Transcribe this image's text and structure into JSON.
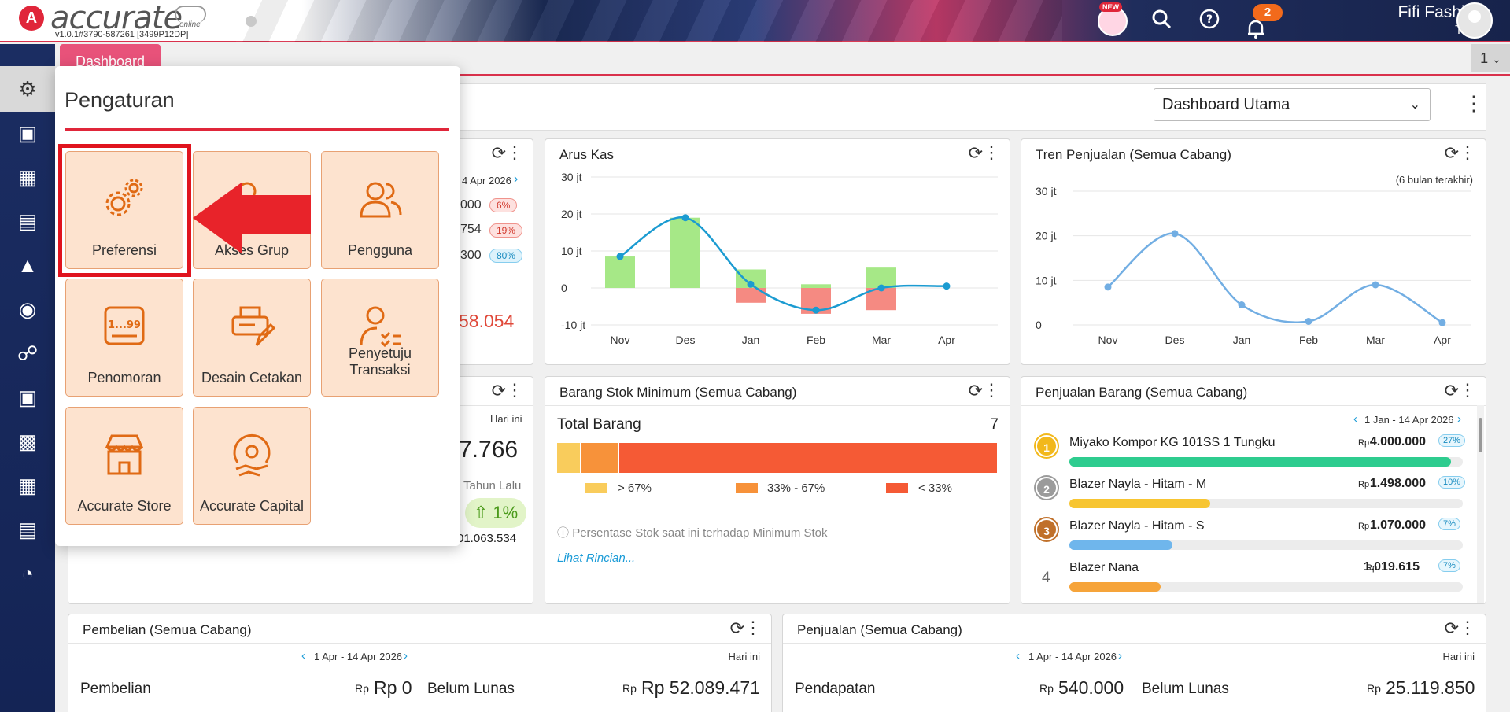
{
  "header": {
    "logo_text": "accurate",
    "logo_sub": "online",
    "version": "v1.0.1#3790-587261 [3499P12DP]",
    "new_badge": "NEW",
    "notification_count": "2",
    "company": "Fifi Fashion",
    "user": "Tiara"
  },
  "tabs": {
    "dashboard": "Dashboard",
    "count": "1"
  },
  "toolbar": {
    "dashboard_select": "Dashboard Utama"
  },
  "popup": {
    "title": "Pengaturan",
    "tiles": [
      {
        "label": "Preferensi",
        "icon": "gears-icon"
      },
      {
        "label": "Akses Grup",
        "icon": "user-search-icon"
      },
      {
        "label": "Pengguna",
        "icon": "users-icon"
      },
      {
        "label": "Penomoran",
        "icon": "numbering-icon"
      },
      {
        "label": "Desain Cetakan",
        "icon": "print-design-icon"
      },
      {
        "label": "Penyetuju Transaksi",
        "icon": "approver-icon"
      },
      {
        "label": "Accurate Store",
        "icon": "store-icon"
      },
      {
        "label": "Accurate Capital",
        "icon": "capital-icon"
      }
    ],
    "numbering_icon_text": "1...99"
  },
  "partial_cards": {
    "date_fragment": "4 Apr 2026",
    "values": [
      "000",
      "754",
      "300"
    ],
    "pills": [
      "6%",
      "19%",
      "80%"
    ],
    "big_value": "58.054",
    "hari_ini": "Hari ini",
    "big_value2": "7.766",
    "tahun_lalu": "Tahun Lalu",
    "growth": "1%",
    "prev_value": "01.063.534"
  },
  "arus_kas": {
    "title": "Arus Kas",
    "y_ticks": [
      "30 jt",
      "20 jt",
      "10 jt",
      "0",
      "-10 jt"
    ],
    "x_ticks": [
      "Nov",
      "Des",
      "Jan",
      "Feb",
      "Mar",
      "Apr"
    ]
  },
  "tren_penjualan": {
    "title": "Tren Penjualan (Semua Cabang)",
    "note": "(6 bulan terakhir)",
    "y_ticks": [
      "30 jt",
      "20 jt",
      "10 jt",
      "0"
    ],
    "x_ticks": [
      "Nov",
      "Des",
      "Jan",
      "Feb",
      "Mar",
      "Apr"
    ]
  },
  "stok_minimum": {
    "title": "Barang Stok Minimum (Semua Cabang)",
    "total_label": "Total Barang",
    "total_value": "7",
    "legend": [
      "> 67%",
      "33% - 67%",
      "< 33%"
    ],
    "note": "Persentase Stok saat ini terhadap Minimum Stok",
    "link": "Lihat Rincian..."
  },
  "penjualan_barang": {
    "title": "Penjualan Barang (Semua Cabang)",
    "date_range": "1 Jan - 14 Apr 2026",
    "currency": "Rp",
    "items": [
      {
        "rank": "1",
        "name": "Miyako Kompor KG 101SS 1 Tungku",
        "value": "4.000.000",
        "pct": "27%",
        "share": 1.0,
        "color": "#2ecc8f"
      },
      {
        "rank": "2",
        "name": "Blazer Nayla - Hitam - M",
        "value": "1.498.000",
        "pct": "10%",
        "share": 0.37,
        "color": "#f7c531"
      },
      {
        "rank": "3",
        "name": "Blazer Nayla - Hitam - S",
        "value": "1.070.000",
        "pct": "7%",
        "share": 0.27,
        "color": "#6fb6ec"
      },
      {
        "rank": "4",
        "name": "Blazer Nana",
        "value": "1.019.615",
        "pct": "7%",
        "share": 0.24,
        "color": "#f6a43a"
      }
    ]
  },
  "pembelian": {
    "title": "Pembelian (Semua Cabang)",
    "date_range": "1 Apr - 14 Apr 2026",
    "hari_ini": "Hari ini",
    "label1": "Pembelian",
    "rp_small": "Rp",
    "value1": "Rp 0",
    "label2": "Belum Lunas",
    "value2": "Rp 52.089.471"
  },
  "penjualan": {
    "title": "Penjualan (Semua Cabang)",
    "date_range": "1 Apr - 14 Apr 2026",
    "hari_ini": "Hari ini",
    "label1": "Pendapatan",
    "rp_small": "Rp",
    "value1": "540.000",
    "label2": "Belum Lunas",
    "value2": "25.119.850"
  },
  "chart_data": [
    {
      "type": "bar",
      "title": "Arus Kas",
      "categories": [
        "Nov",
        "Des",
        "Jan",
        "Feb",
        "Mar",
        "Apr"
      ],
      "ylim": [
        -10,
        30
      ],
      "series": [
        {
          "values": [
            8.5,
            19,
            5,
            1,
            5.5,
            0
          ]
        },
        {
          "values": [
            0,
            0,
            -4,
            -7,
            -6,
            0
          ]
        },
        {
          "values": [
            8.5,
            19,
            1,
            -6,
            0,
            0.5
          ]
        }
      ]
    },
    {
      "type": "line",
      "title": "Tren Penjualan (Semua Cabang)",
      "categories": [
        "Nov",
        "Des",
        "Jan",
        "Feb",
        "Mar",
        "Apr"
      ],
      "ylim": [
        0,
        30
      ],
      "series": [
        {
          "values": [
            8.5,
            20.5,
            4.5,
            0.8,
            9,
            0.5
          ]
        }
      ]
    },
    {
      "type": "bar",
      "title": "Barang Stok Minimum (Semua Cabang)",
      "categories": [
        "> 67%",
        "33% - 67%",
        "< 33%"
      ],
      "values": [
        0.055,
        0.085,
        0.86
      ]
    }
  ]
}
